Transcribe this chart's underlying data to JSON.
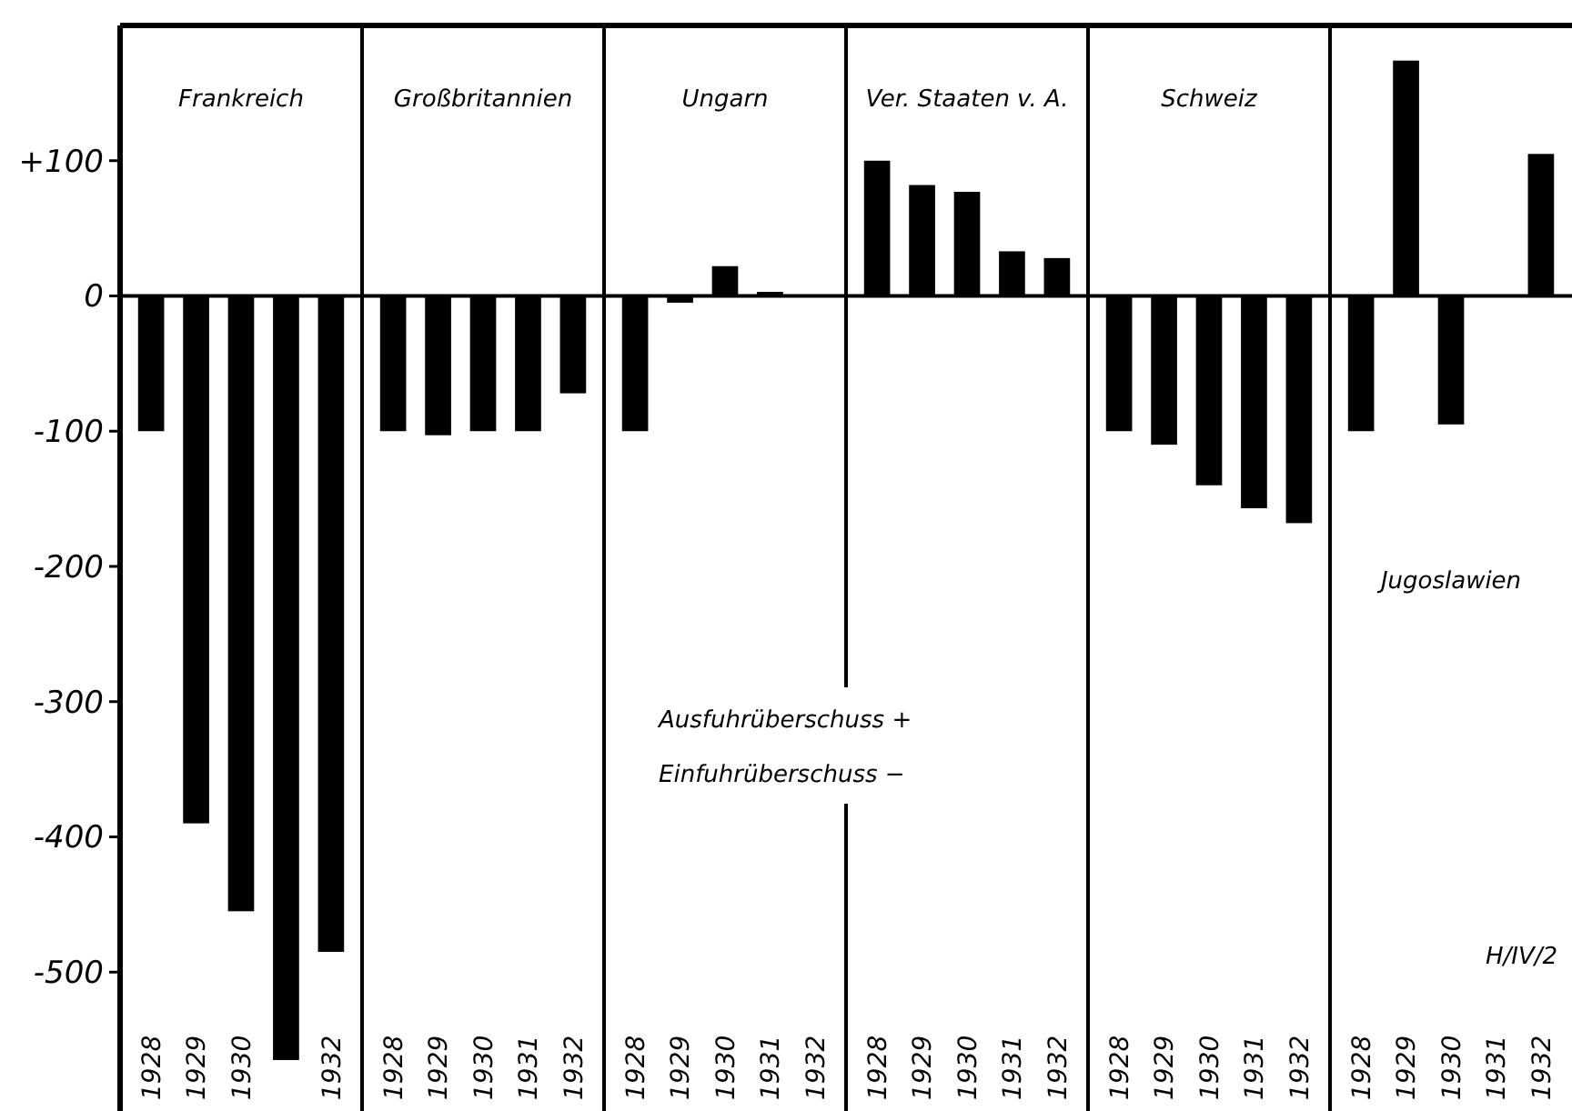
{
  "chart_data": [
    {
      "type": "bar",
      "title": "Frankreich",
      "categories": [
        "1928",
        "1929",
        "1930",
        null,
        "1932"
      ],
      "values": [
        -100,
        -390,
        -455,
        -565,
        -485
      ],
      "color": "#000000",
      "ylim": [
        -600,
        200
      ],
      "yticks": [
        {
          "value": 100,
          "label": "+100"
        },
        0,
        -100,
        -200,
        -300,
        -400,
        -500
      ]
    },
    {
      "type": "bar",
      "title": "Großbritannien",
      "categories": [
        "1928",
        "1929",
        "1930",
        "1931",
        "1932"
      ],
      "values": [
        -100,
        -103,
        -100,
        -100,
        -72
      ],
      "color": "#000000",
      "ylim": [
        -600,
        200
      ],
      "tick_labels": "x"
    },
    {
      "type": "bar",
      "title": "Ungarn",
      "categories": [
        "1928",
        "1929",
        "1930",
        "1931",
        "1932"
      ],
      "values": [
        -100,
        -5,
        22,
        3,
        0
      ],
      "color": "#000000",
      "ylim": [
        -600,
        200
      ],
      "tick_labels": "x",
      "annotations": [
        "Ausfuhrüberschuss +",
        "Einfuhrüberschuss −"
      ]
    },
    {
      "type": "bar",
      "title": "Ver. Staaten v. A.",
      "categories": [
        "1928",
        "1929",
        "1930",
        "1931",
        "1932"
      ],
      "values": [
        100,
        82,
        77,
        33,
        28
      ],
      "color": "#000000",
      "ylim": [
        -600,
        200
      ],
      "tick_labels": "x"
    },
    {
      "type": "bar",
      "title": "Schweiz",
      "categories": [
        "1928",
        "1929",
        "1930",
        "1931",
        "1932"
      ],
      "values": [
        -100,
        -110,
        -140,
        -157,
        -168
      ],
      "color": "#000000",
      "ylim": [
        -600,
        200
      ],
      "tick_labels": "x"
    },
    {
      "type": "bar",
      "title": "Jugoslawien",
      "categories": [
        "1928",
        "1929",
        "1930",
        "1931",
        "1932"
      ],
      "values": [
        -100,
        174,
        -95,
        0,
        105
      ],
      "color": "#000000",
      "ylim": [
        -600,
        200
      ],
      "tick_labels": "x",
      "annotations": [
        "H/IV/2"
      ]
    }
  ]
}
